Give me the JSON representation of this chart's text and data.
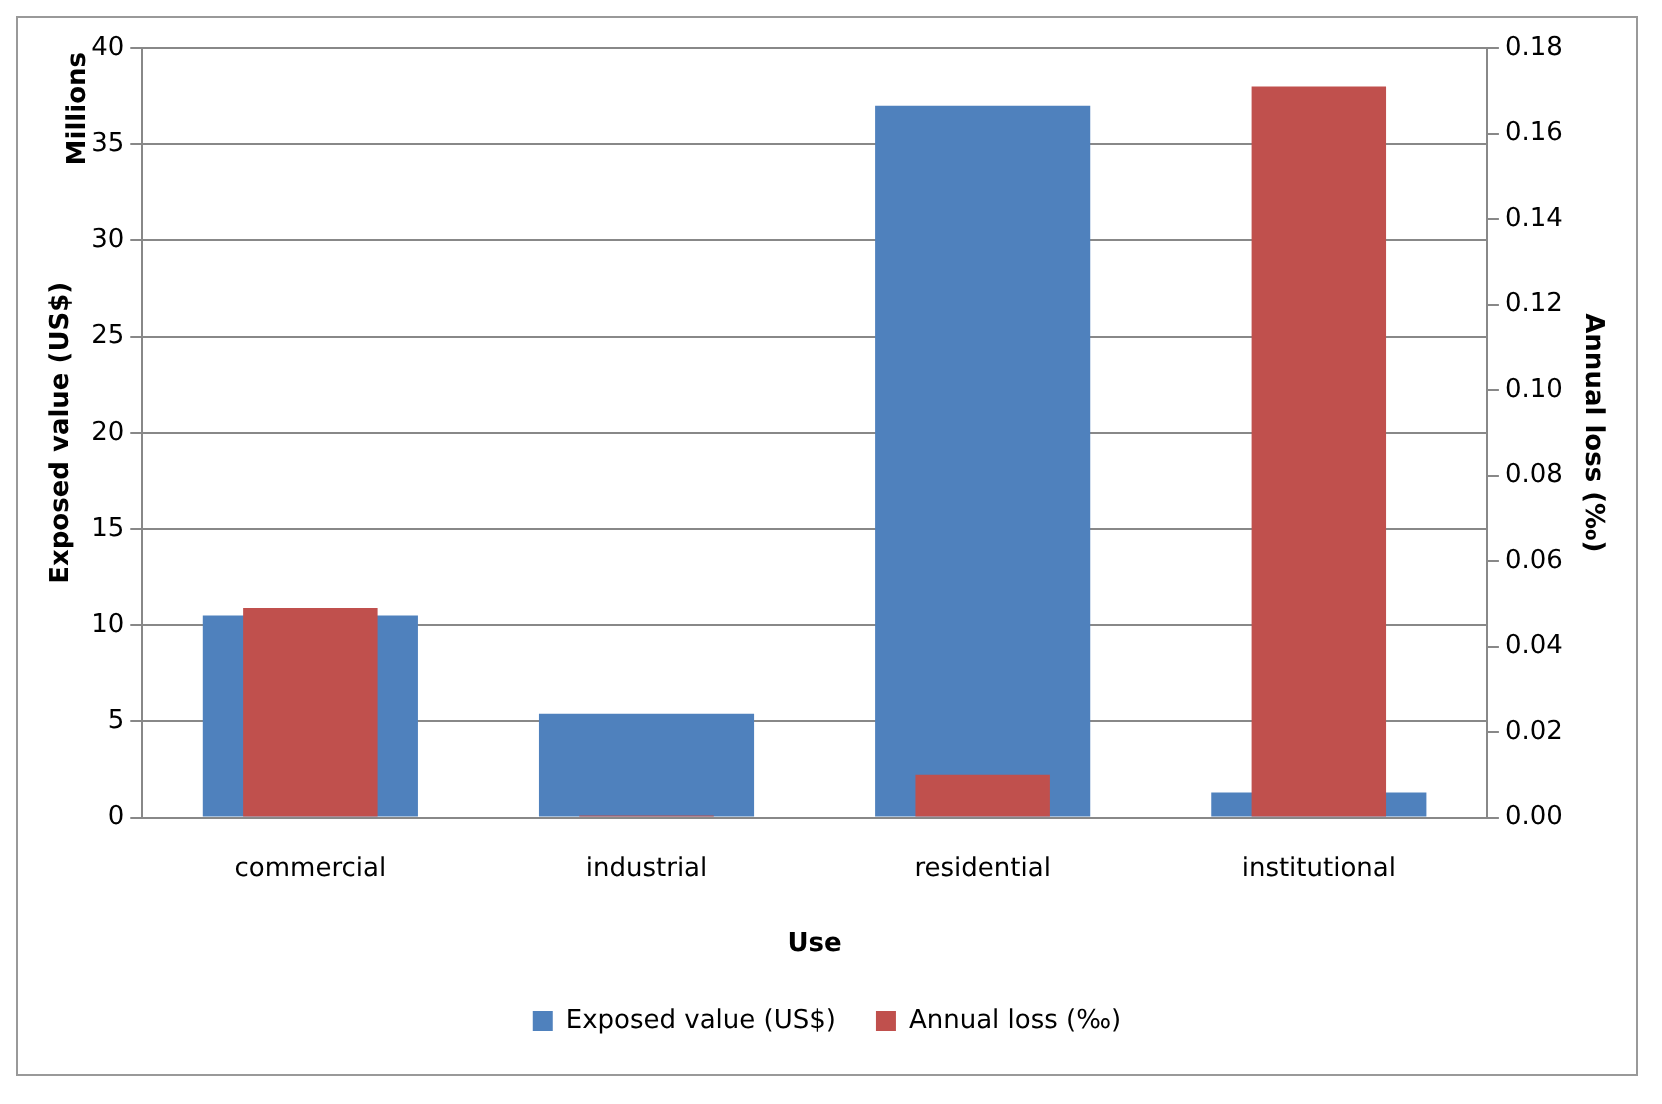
{
  "chart_data": {
    "type": "bar",
    "xlabel": "Use",
    "ylabel": "Exposed value (US$)",
    "y2label": "Annual loss (‰)",
    "annotations": [
      "Millions"
    ],
    "categories": [
      "commercial",
      "industrial",
      "residential",
      "institutional"
    ],
    "series": [
      {
        "name": "Exposed value (US$)",
        "color": "#4f81bd",
        "values": [
          10.5,
          5.4,
          37.0,
          1.3
        ]
      },
      {
        "name": "Annual loss (‰)",
        "color": "#c0504d",
        "values": [
          0.049,
          0.0005,
          0.01,
          0.171
        ],
        "axis": "y2"
      }
    ],
    "ylim": [
      0,
      40
    ],
    "yticks": [
      0,
      5,
      10,
      15,
      20,
      25,
      30,
      35,
      40
    ],
    "y2lim": [
      0,
      0.18
    ],
    "y2ticks": [
      {
        "value": 0,
        "label": "0.00"
      },
      {
        "value": 0.02,
        "label": "0.02"
      },
      {
        "value": 0.04,
        "label": "0.04"
      },
      {
        "value": 0.06,
        "label": "0.06"
      },
      {
        "value": 0.08,
        "label": "0.08"
      },
      {
        "value": 0.1,
        "label": "0.10"
      },
      {
        "value": 0.12,
        "label": "0.12"
      },
      {
        "value": 0.14,
        "label": "0.14"
      },
      {
        "value": 0.16,
        "label": "0.16"
      },
      {
        "value": 0.18,
        "label": "0.18"
      }
    ],
    "grid": "y",
    "legend": "bottom"
  }
}
